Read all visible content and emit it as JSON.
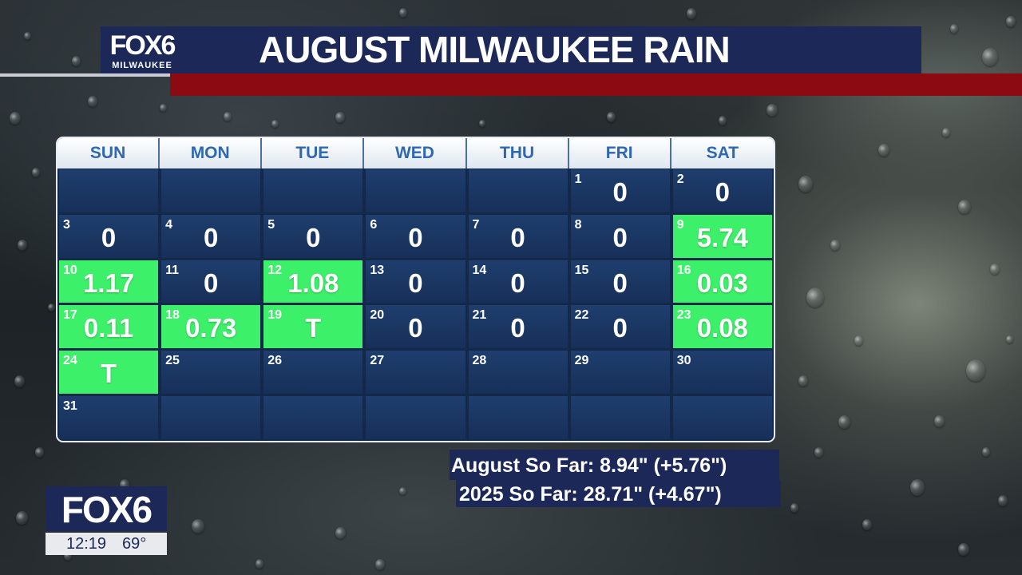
{
  "header": {
    "logo": "FOX6",
    "logo_sub": "MILWAUKEE",
    "title": "AUGUST MILWAUKEE RAIN",
    "colors": {
      "navy": "#1c2858",
      "red": "#8c0b12"
    }
  },
  "calendar": {
    "days": [
      "SUN",
      "MON",
      "TUE",
      "WED",
      "THU",
      "FRI",
      "SAT"
    ],
    "colors": {
      "rain_cell": "#3df06a",
      "dry_cell": "#1a3560",
      "header_text": "#2f68b0"
    },
    "cells": [
      {
        "day": "",
        "value": "",
        "rain": false
      },
      {
        "day": "",
        "value": "",
        "rain": false
      },
      {
        "day": "",
        "value": "",
        "rain": false
      },
      {
        "day": "",
        "value": "",
        "rain": false
      },
      {
        "day": "",
        "value": "",
        "rain": false
      },
      {
        "day": "1",
        "value": "0",
        "rain": false
      },
      {
        "day": "2",
        "value": "0",
        "rain": false
      },
      {
        "day": "3",
        "value": "0",
        "rain": false
      },
      {
        "day": "4",
        "value": "0",
        "rain": false
      },
      {
        "day": "5",
        "value": "0",
        "rain": false
      },
      {
        "day": "6",
        "value": "0",
        "rain": false
      },
      {
        "day": "7",
        "value": "0",
        "rain": false
      },
      {
        "day": "8",
        "value": "0",
        "rain": false
      },
      {
        "day": "9",
        "value": "5.74",
        "rain": true
      },
      {
        "day": "10",
        "value": "1.17",
        "rain": true
      },
      {
        "day": "11",
        "value": "0",
        "rain": false
      },
      {
        "day": "12",
        "value": "1.08",
        "rain": true
      },
      {
        "day": "13",
        "value": "0",
        "rain": false
      },
      {
        "day": "14",
        "value": "0",
        "rain": false
      },
      {
        "day": "15",
        "value": "0",
        "rain": false
      },
      {
        "day": "16",
        "value": "0.03",
        "rain": true
      },
      {
        "day": "17",
        "value": "0.11",
        "rain": true
      },
      {
        "day": "18",
        "value": "0.73",
        "rain": true
      },
      {
        "day": "19",
        "value": "T",
        "rain": true
      },
      {
        "day": "20",
        "value": "0",
        "rain": false
      },
      {
        "day": "21",
        "value": "0",
        "rain": false
      },
      {
        "day": "22",
        "value": "0",
        "rain": false
      },
      {
        "day": "23",
        "value": "0.08",
        "rain": true
      },
      {
        "day": "24",
        "value": "T",
        "rain": true
      },
      {
        "day": "25",
        "value": "",
        "rain": false
      },
      {
        "day": "26",
        "value": "",
        "rain": false
      },
      {
        "day": "27",
        "value": "",
        "rain": false
      },
      {
        "day": "28",
        "value": "",
        "rain": false
      },
      {
        "day": "29",
        "value": "",
        "rain": false
      },
      {
        "day": "30",
        "value": "",
        "rain": false
      },
      {
        "day": "31",
        "value": "",
        "rain": false
      },
      {
        "day": "",
        "value": "",
        "rain": false
      },
      {
        "day": "",
        "value": "",
        "rain": false
      },
      {
        "day": "",
        "value": "",
        "rain": false
      },
      {
        "day": "",
        "value": "",
        "rain": false
      },
      {
        "day": "",
        "value": "",
        "rain": false
      },
      {
        "day": "",
        "value": "",
        "rain": false
      }
    ]
  },
  "summary": {
    "month_line": "August So Far: 8.94\" (+5.76\")",
    "year_line": "2025 So Far:  28.71\" (+4.67\")"
  },
  "bug": {
    "logo": "FOX6",
    "time": "12:19",
    "temp": "69°"
  }
}
